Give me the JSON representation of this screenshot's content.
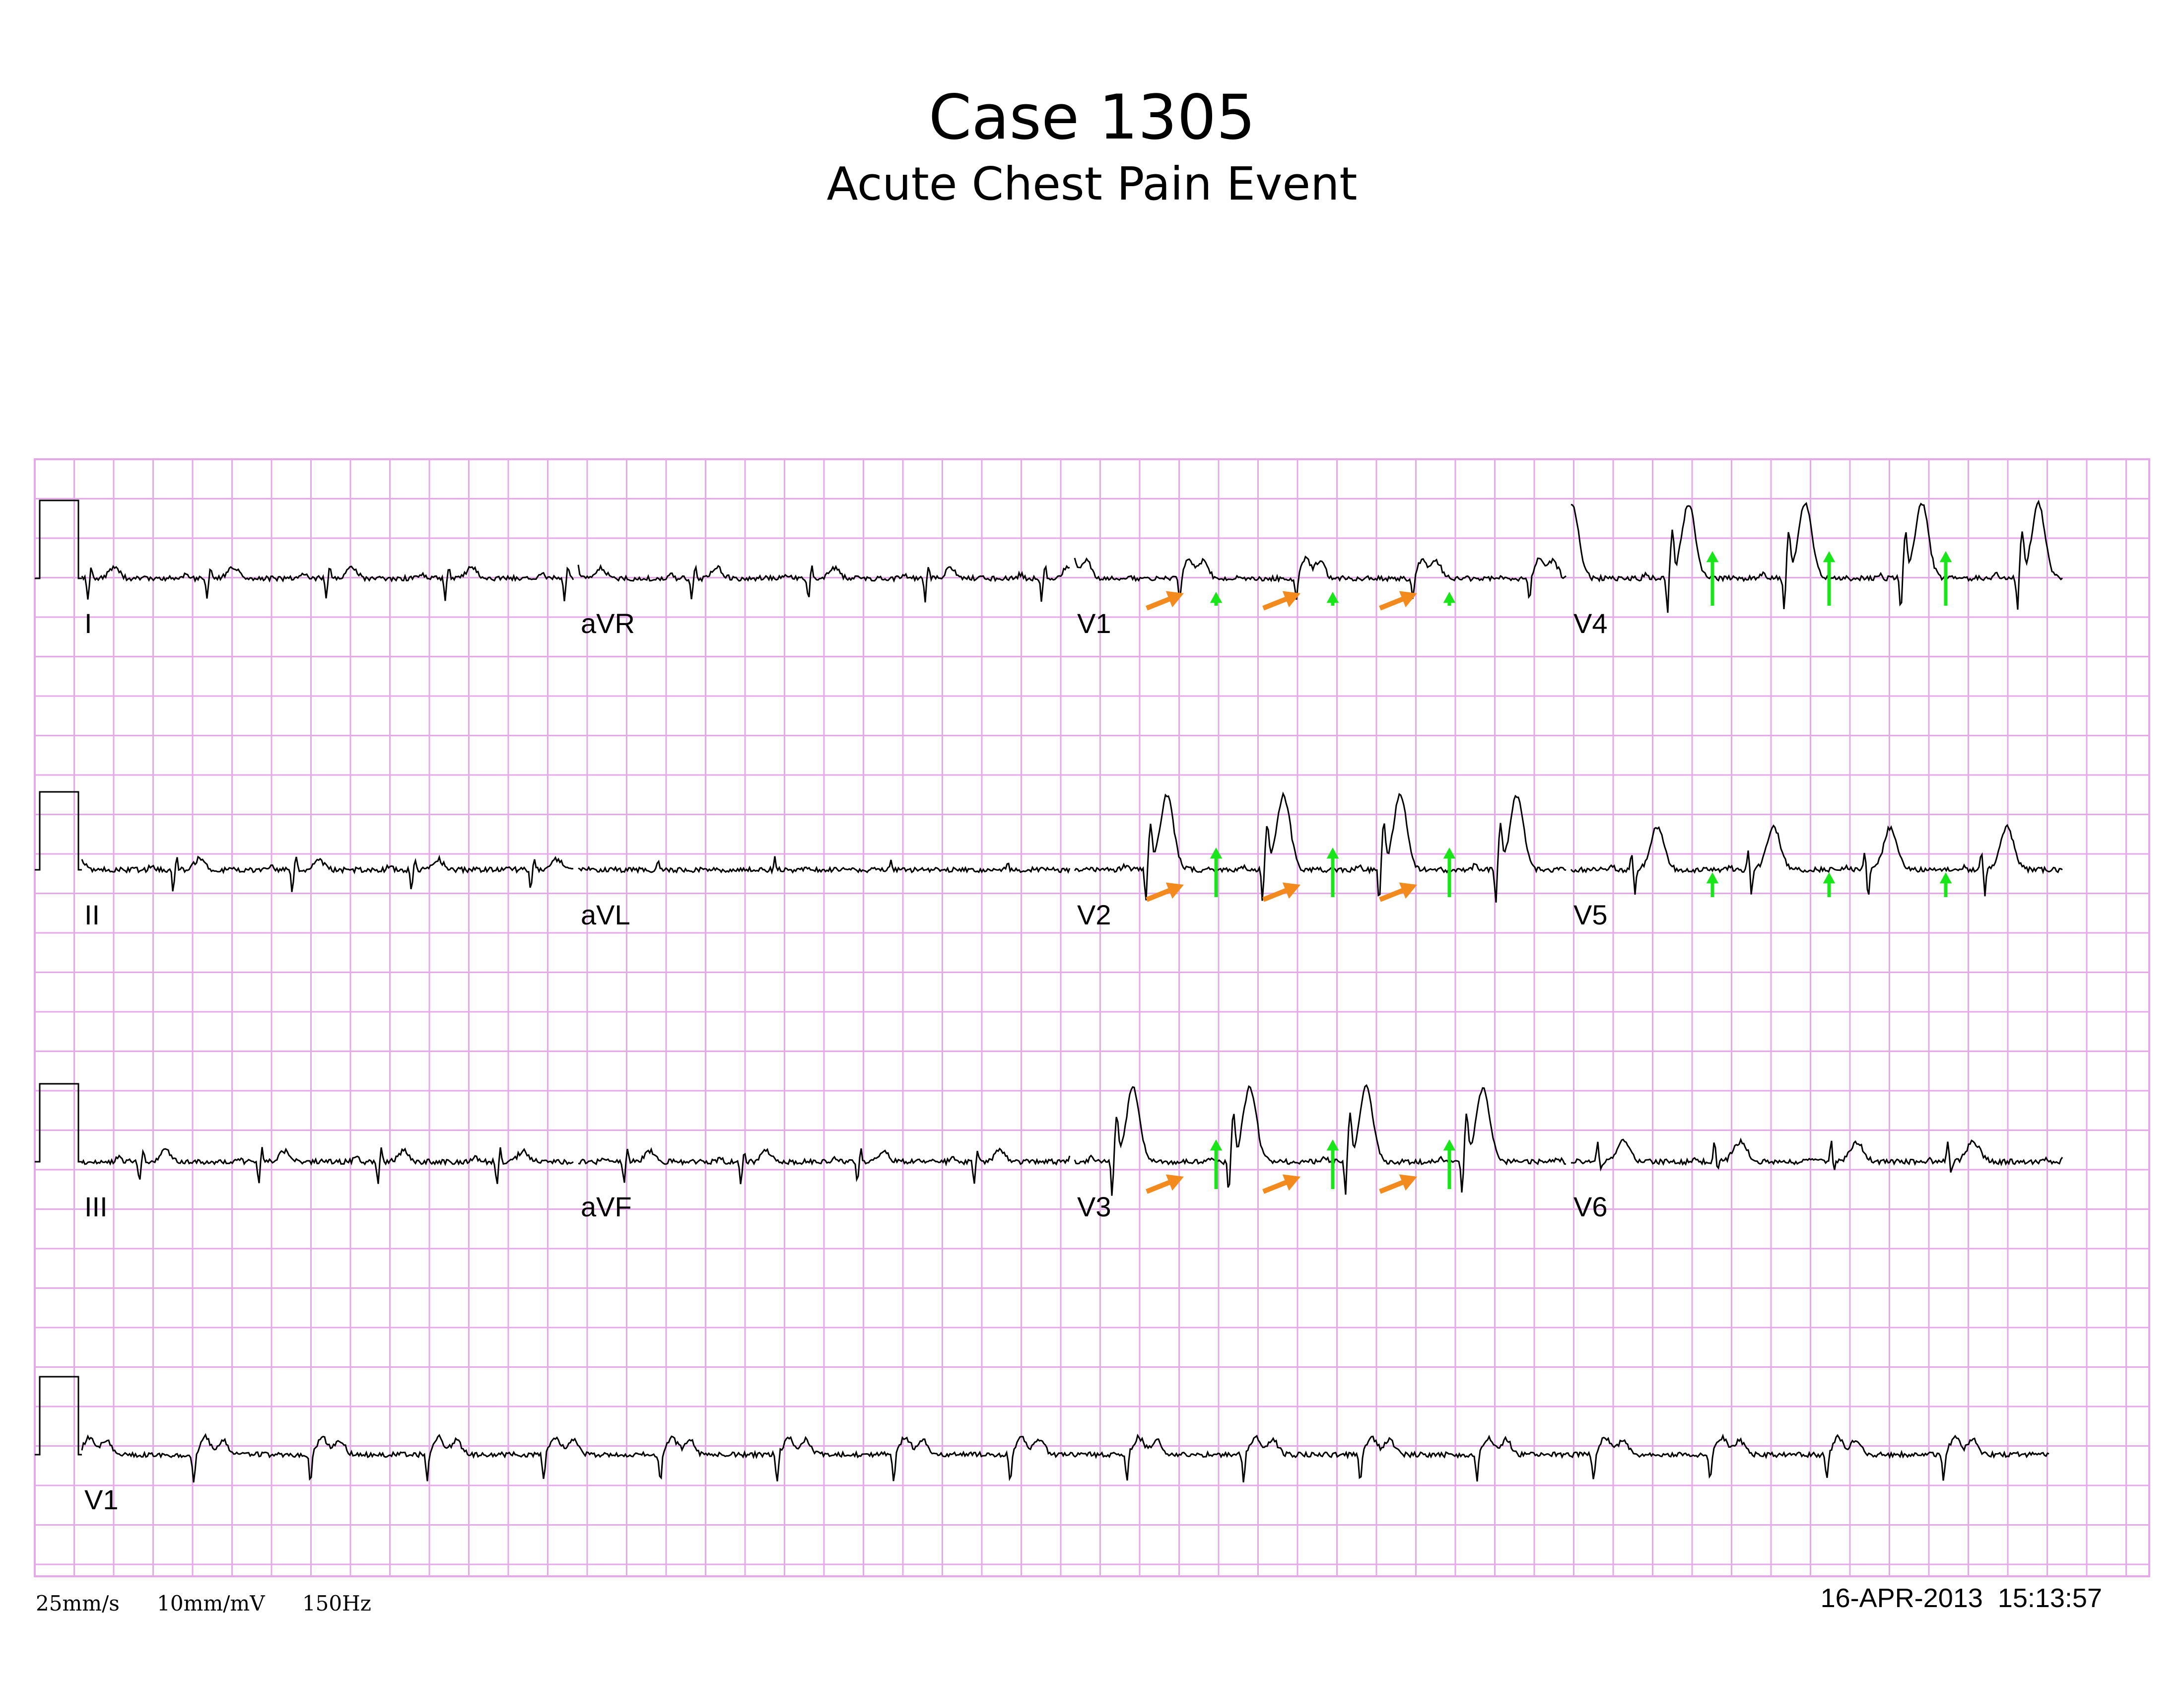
{
  "header": {
    "title": "Case 1305",
    "subtitle": "Acute Chest Pain Event"
  },
  "leads": [
    {
      "label": "I",
      "row": 0,
      "col": 0,
      "kind": "limb_small"
    },
    {
      "label": "aVR",
      "row": 0,
      "col": 1,
      "kind": "limb_small"
    },
    {
      "label": "V1",
      "row": 0,
      "col": 2,
      "kind": "v1_ste"
    },
    {
      "label": "V4",
      "row": 0,
      "col": 3,
      "kind": "precordial_tall"
    },
    {
      "label": "II",
      "row": 1,
      "col": 0,
      "kind": "limb_small"
    },
    {
      "label": "aVL",
      "row": 1,
      "col": 1,
      "kind": "flat"
    },
    {
      "label": "V2",
      "row": 1,
      "col": 2,
      "kind": "precordial_tall"
    },
    {
      "label": "V5",
      "row": 1,
      "col": 3,
      "kind": "precordial_medium"
    },
    {
      "label": "III",
      "row": 2,
      "col": 0,
      "kind": "limb_small"
    },
    {
      "label": "aVF",
      "row": 2,
      "col": 1,
      "kind": "limb_small"
    },
    {
      "label": "V3",
      "row": 2,
      "col": 2,
      "kind": "precordial_tall"
    },
    {
      "label": "V6",
      "row": 2,
      "col": 3,
      "kind": "precordial_small"
    }
  ],
  "rhythm_strip": {
    "label": "V1",
    "kind": "rhythm"
  },
  "annotations": {
    "orange_arrow_color": "#f28a1e",
    "green_arrow_color": "#19e619",
    "orange_arrow_leads": [
      "V1",
      "V2",
      "V3"
    ],
    "green_arrow_leads": [
      "V1",
      "V2",
      "V3",
      "V4",
      "V5"
    ],
    "beats_marked_per_lead": 3
  },
  "grid": {
    "color": "#e5a8e8"
  },
  "footer": {
    "speed": "25mm/s",
    "gain": "10mm/mV",
    "filter": "150Hz",
    "date": "16-APR-2013",
    "time": "15:13:57"
  }
}
